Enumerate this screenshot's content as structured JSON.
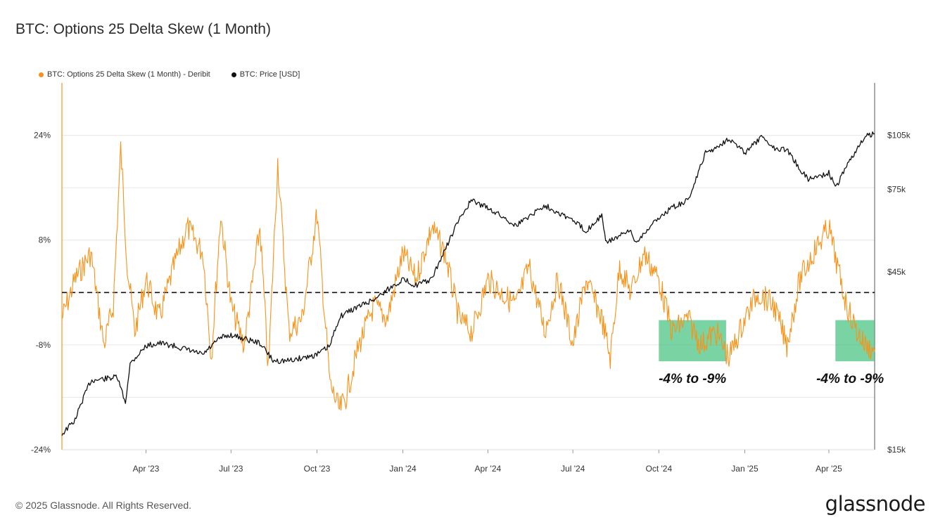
{
  "title": "BTC: Options 25 Delta Skew (1 Month)",
  "footer": "© 2025 Glassnode. All Rights Reserved.",
  "brand": "glassnode",
  "colors": {
    "skew": "#f7931a",
    "price": "#111111",
    "zone": "#41c07a",
    "grid": "#e6e6e6"
  },
  "chart_data": {
    "type": "line",
    "title": "BTC: Options 25 Delta Skew (1 Month)",
    "legend_position": "top-left",
    "grid": true,
    "x_range": [
      "2023-01-01",
      "2025-05-20"
    ],
    "x_ticks": [
      {
        "date": "2023-04-01",
        "label": "Apr '23"
      },
      {
        "date": "2023-07-01",
        "label": "Jul '23"
      },
      {
        "date": "2023-10-01",
        "label": "Oct '23"
      },
      {
        "date": "2024-01-01",
        "label": "Jan '24"
      },
      {
        "date": "2024-04-01",
        "label": "Apr '24"
      },
      {
        "date": "2024-07-01",
        "label": "Jul '24"
      },
      {
        "date": "2024-10-01",
        "label": "Oct '24"
      },
      {
        "date": "2025-01-01",
        "label": "Jan '25"
      },
      {
        "date": "2025-04-01",
        "label": "Apr '25"
      }
    ],
    "y_left": {
      "range": [
        -24,
        32
      ],
      "ticks": [
        {
          "v": 24,
          "label": "24%"
        },
        {
          "v": 8,
          "label": "8%"
        },
        {
          "v": -8,
          "label": "-8%"
        },
        {
          "v": -24,
          "label": "-24%"
        }
      ]
    },
    "y_right": {
      "scale": "log",
      "range": [
        15000,
        145000
      ],
      "ticks": [
        {
          "v": 105000,
          "label": "$105k"
        },
        {
          "v": 75000,
          "label": "$75k"
        },
        {
          "v": 45000,
          "label": "$45k"
        },
        {
          "v": 15000,
          "label": "$15k"
        }
      ]
    },
    "reference_line": {
      "axis": "left",
      "value": 0,
      "style": "dashed"
    },
    "series": [
      {
        "name": "BTC: Options 25 Delta Skew (1 Month) - Deribit",
        "axis": "left",
        "x": [
          "2023-01-01",
          "2023-01-15",
          "2023-02-01",
          "2023-02-15",
          "2023-02-25",
          "2023-03-05",
          "2023-03-12",
          "2023-03-20",
          "2023-04-01",
          "2023-04-15",
          "2023-05-01",
          "2023-05-15",
          "2023-06-01",
          "2023-06-10",
          "2023-06-20",
          "2023-07-01",
          "2023-07-15",
          "2023-08-01",
          "2023-08-10",
          "2023-08-20",
          "2023-09-01",
          "2023-09-15",
          "2023-10-01",
          "2023-10-15",
          "2023-10-25",
          "2023-11-01",
          "2023-11-15",
          "2023-12-01",
          "2023-12-15",
          "2024-01-01",
          "2024-01-15",
          "2024-02-01",
          "2024-02-15",
          "2024-03-01",
          "2024-03-15",
          "2024-04-01",
          "2024-04-15",
          "2024-05-01",
          "2024-05-15",
          "2024-06-01",
          "2024-06-15",
          "2024-07-01",
          "2024-07-15",
          "2024-08-01",
          "2024-08-10",
          "2024-08-20",
          "2024-09-01",
          "2024-09-15",
          "2024-10-01",
          "2024-10-15",
          "2024-11-01",
          "2024-11-15",
          "2024-12-01",
          "2024-12-15",
          "2025-01-01",
          "2025-01-15",
          "2025-02-01",
          "2025-02-15",
          "2025-03-01",
          "2025-03-15",
          "2025-04-01",
          "2025-04-10",
          "2025-04-20",
          "2025-05-01",
          "2025-05-10",
          "2025-05-20"
        ],
        "values": [
          -4,
          2,
          6,
          -8,
          -2,
          22,
          4,
          -6,
          2,
          -4,
          4,
          10,
          6,
          -10,
          12,
          -2,
          -8,
          10,
          -12,
          20,
          -6,
          -4,
          12,
          -14,
          -18,
          -16,
          -8,
          -2,
          -4,
          6,
          2,
          10,
          6,
          -4,
          -6,
          2,
          0,
          -2,
          4,
          -6,
          2,
          -8,
          2,
          -4,
          -10,
          4,
          0,
          6,
          2,
          -6,
          -4,
          -8,
          -6,
          -10,
          -4,
          0,
          -2,
          -8,
          2,
          6,
          10,
          4,
          -2,
          -6,
          -8,
          -9
        ]
      },
      {
        "name": "BTC: Price [USD]",
        "axis": "right",
        "x": [
          "2023-01-01",
          "2023-01-15",
          "2023-02-01",
          "2023-03-01",
          "2023-03-10",
          "2023-03-15",
          "2023-04-01",
          "2023-04-15",
          "2023-05-01",
          "2023-06-01",
          "2023-06-20",
          "2023-07-01",
          "2023-08-01",
          "2023-08-15",
          "2023-09-01",
          "2023-10-01",
          "2023-10-15",
          "2023-10-25",
          "2023-11-01",
          "2023-12-01",
          "2024-01-01",
          "2024-01-15",
          "2024-02-01",
          "2024-02-15",
          "2024-03-01",
          "2024-03-14",
          "2024-04-01",
          "2024-05-01",
          "2024-06-01",
          "2024-07-01",
          "2024-07-15",
          "2024-08-01",
          "2024-08-05",
          "2024-09-01",
          "2024-09-06",
          "2024-10-01",
          "2024-10-15",
          "2024-11-01",
          "2024-11-10",
          "2024-11-20",
          "2024-12-01",
          "2024-12-15",
          "2025-01-01",
          "2025-01-20",
          "2025-02-01",
          "2025-02-15",
          "2025-03-01",
          "2025-03-10",
          "2025-04-01",
          "2025-04-09",
          "2025-04-20",
          "2025-05-01",
          "2025-05-10",
          "2025-05-20"
        ],
        "values": [
          16500,
          18000,
          23000,
          23500,
          20000,
          25500,
          28500,
          29000,
          28500,
          27000,
          30000,
          30500,
          29000,
          26000,
          26000,
          27000,
          28500,
          34000,
          35000,
          38000,
          43000,
          41500,
          43000,
          51500,
          62000,
          70000,
          67000,
          60000,
          68000,
          62000,
          58000,
          64000,
          54000,
          58000,
          54000,
          63000,
          67000,
          70000,
          80000,
          94000,
          97000,
          103000,
          94000,
          104000,
          97000,
          96000,
          85000,
          80000,
          83000,
          76000,
          87000,
          96000,
          104000,
          106000
        ]
      }
    ],
    "annotations": [
      {
        "type": "zone",
        "x_start": "2024-10-01",
        "x_end": "2024-12-12",
        "y_from": -4,
        "y_to": -9,
        "label": "-4% to -9%"
      },
      {
        "type": "zone",
        "x_start": "2025-04-08",
        "x_end": "2025-05-20",
        "y_from": -4,
        "y_to": -9,
        "label": "-4% to -9%"
      }
    ]
  }
}
